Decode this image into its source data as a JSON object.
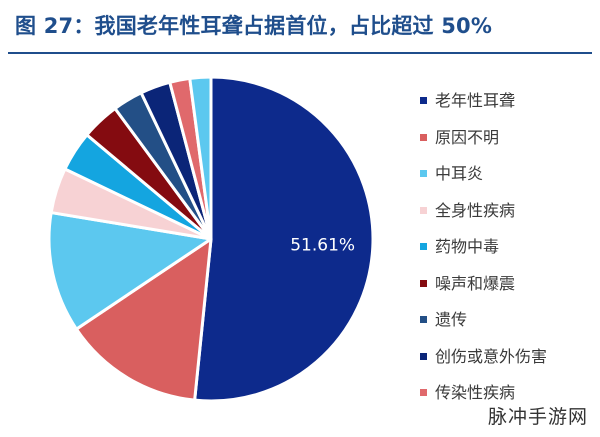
{
  "chart_data": {
    "type": "pie",
    "title": "图 27：我国老年性耳聋占据首位，占比超过 50%",
    "slices": [
      {
        "label": "老年性耳聋",
        "value": 51.61,
        "color": "#0d2a8c",
        "data_label": "51.61%"
      },
      {
        "label": "原因不明",
        "value": 14.0,
        "color": "#d95f5f"
      },
      {
        "label": "中耳炎",
        "value": 12.0,
        "color": "#5cc8ef"
      },
      {
        "label": "全身性疾病",
        "value": 4.5,
        "color": "#f7d2d4"
      },
      {
        "label": "药物中毒",
        "value": 4.0,
        "color": "#14a5e0"
      },
      {
        "label": "噪声和爆震",
        "value": 3.8,
        "color": "#840b10"
      },
      {
        "label": "遗传",
        "value": 3.0,
        "color": "#234f86"
      },
      {
        "label": "创伤或意外伤害",
        "value": 3.0,
        "color": "#0b2578"
      },
      {
        "label": "传染性疾病",
        "value": 2.0,
        "color": "#e0696c"
      },
      {
        "label": "",
        "value": 2.09,
        "color": "#5cc8ef"
      }
    ],
    "legend_position": "right"
  },
  "watermark": "脉冲手游网"
}
